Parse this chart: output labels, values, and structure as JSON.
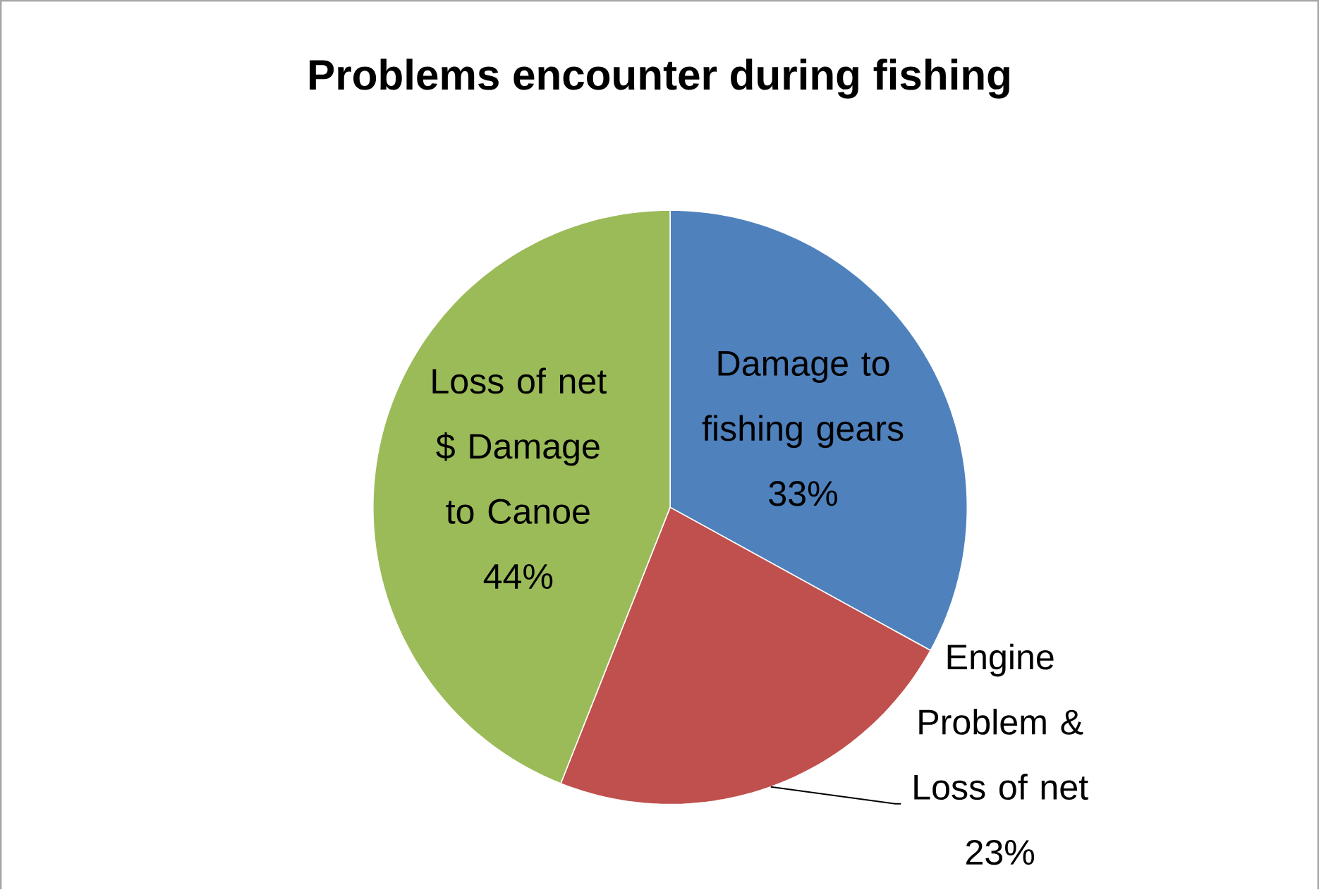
{
  "chart_data": {
    "type": "pie",
    "title": "Problems encounter during fishing",
    "categories": [
      "Damage to fishing gears",
      "Engine Problem & Loss of net",
      "Loss of net $ Damage to Canoe"
    ],
    "values": [
      33,
      23,
      44
    ],
    "colors": [
      "#4f81bd",
      "#c0504d",
      "#9bbb59"
    ],
    "value_labels": [
      "33%",
      "23%",
      "44%"
    ]
  }
}
